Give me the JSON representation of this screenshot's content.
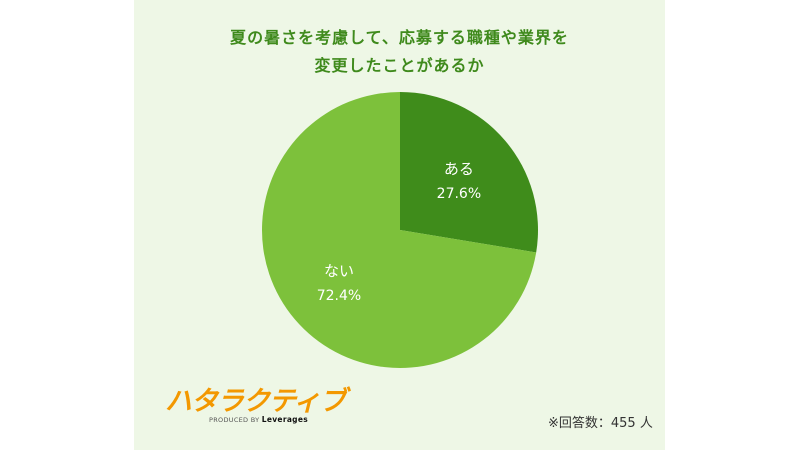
{
  "chart_data": {
    "type": "pie",
    "title": "夏の暑さを考慮して、応募する職種や業界を\n変更したことがあるか",
    "slices": [
      {
        "label": "ある",
        "value": 27.6,
        "value_label": "27.6%",
        "color": "#3f8c1b"
      },
      {
        "label": "ない",
        "value": 72.4,
        "value_label": "72.4%",
        "color": "#7dc13b"
      }
    ],
    "start_angle_deg": 0,
    "direction": "clockwise"
  },
  "logo": {
    "text": "ハタラクティブ",
    "sub_prefix": "PRODUCED BY ",
    "sub_brand": "Leverages"
  },
  "note": "※回答数：455 人",
  "colors": {
    "background": "#eef7e6",
    "title": "#3f8a1c",
    "logo": "#f39800"
  }
}
